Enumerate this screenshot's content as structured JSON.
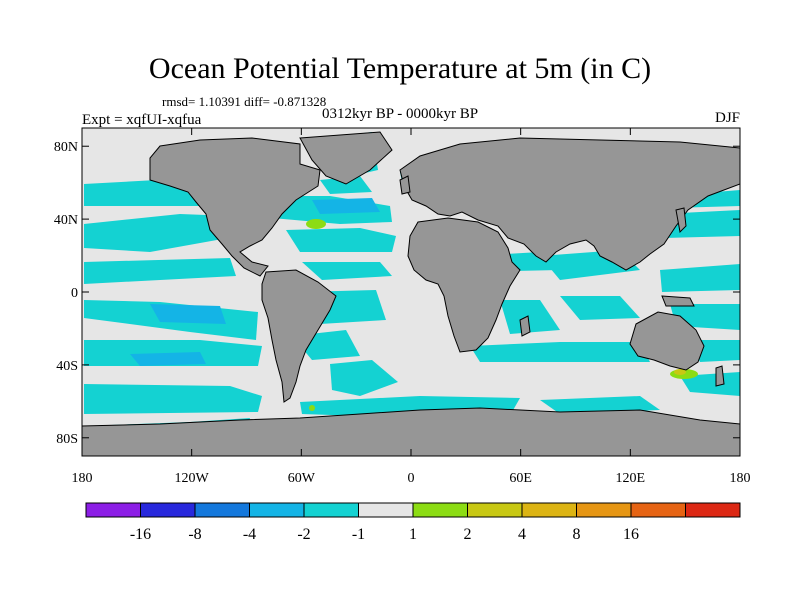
{
  "chart_data": {
    "type": "heatmap",
    "title": "Ocean Potential Temperature at 5m (in C)",
    "stats": "rmsd= 1.10391 diff= -0.871328",
    "experiment": "Expt = xqfUI-xqfua",
    "period": "0312kyr BP - 0000kyr BP",
    "season": "DJF",
    "x_ticks": [
      "180",
      "120W",
      "60W",
      "0",
      "60E",
      "120E",
      "180"
    ],
    "x_tick_values": [
      -180,
      -120,
      -60,
      0,
      60,
      120,
      180
    ],
    "y_ticks": [
      "80N",
      "40N",
      "0",
      "40S",
      "80S"
    ],
    "y_tick_values": [
      80,
      40,
      0,
      -40,
      -80
    ],
    "xlim": [
      -180,
      180
    ],
    "ylim": [
      -90,
      90
    ],
    "colorbar": {
      "levels": [
        "-16",
        "-8",
        "-4",
        "-2",
        "-1",
        "1",
        "2",
        "4",
        "8",
        "16"
      ],
      "colors": [
        "#8c1ee6",
        "#2828dc",
        "#1478dc",
        "#14b4e6",
        "#14d2d2",
        "#e6e6e6",
        "#8cdc14",
        "#c8c814",
        "#dcb414",
        "#e69614",
        "#e66414",
        "#dc2814"
      ]
    },
    "field_colors": {
      "land": "#969696",
      "near_zero": "#e6e6e6",
      "cool": "#14d2d2",
      "cooler": "#14b4e6",
      "coldest": "#1478dc",
      "warm": "#8cdc14",
      "warmer": "#c8c814"
    }
  }
}
